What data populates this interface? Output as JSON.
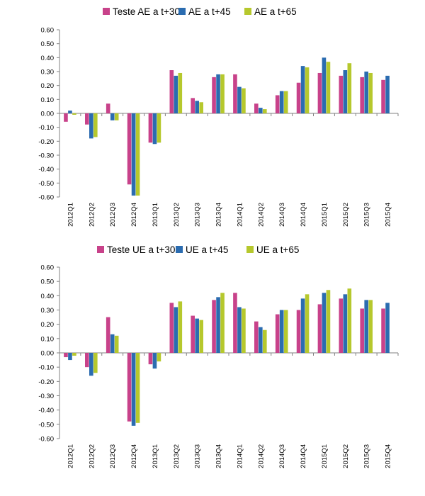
{
  "chart_data": [
    {
      "type": "bar",
      "categories": [
        "2012Q1",
        "2012Q2",
        "2012Q3",
        "2012Q4",
        "2013Q1",
        "2013Q2",
        "2013Q3",
        "2013Q4",
        "2014Q1",
        "2014Q2",
        "2014Q3",
        "2014Q4",
        "2015Q1",
        "2015Q2",
        "2015Q3",
        "2015Q4"
      ],
      "series": [
        {
          "name": "Teste AE a t+30",
          "color": "#c8428a",
          "values": [
            -0.06,
            -0.08,
            0.07,
            -0.51,
            -0.21,
            0.31,
            0.11,
            0.26,
            0.28,
            0.07,
            0.13,
            0.22,
            0.29,
            0.27,
            0.26,
            0.24
          ]
        },
        {
          "name": "AE a t+45",
          "color": "#2b6cb0",
          "values": [
            0.02,
            -0.18,
            -0.05,
            -0.59,
            -0.22,
            0.27,
            0.09,
            0.28,
            0.19,
            0.04,
            0.16,
            0.34,
            0.4,
            0.31,
            0.3,
            0.27
          ]
        },
        {
          "name": "AE a t+65",
          "color": "#b6c82d",
          "values": [
            -0.01,
            -0.17,
            -0.05,
            -0.59,
            -0.21,
            0.29,
            0.08,
            0.28,
            0.18,
            0.03,
            0.16,
            0.33,
            0.37,
            0.36,
            0.29,
            null
          ]
        }
      ],
      "ylim": [
        -0.6,
        0.6
      ],
      "yticks": [
        "0.60",
        "0.50",
        "0.40",
        "0.30",
        "0.20",
        "0.10",
        "0.00",
        "-0.10",
        "-0.20",
        "-0.30",
        "-0.40",
        "-0.50",
        "-0.60"
      ],
      "grid": false,
      "legend": "top-center"
    },
    {
      "type": "bar",
      "categories": [
        "2012Q1",
        "2012Q2",
        "2012Q3",
        "2012Q4",
        "2013Q1",
        "2013Q2",
        "2013Q3",
        "2013Q4",
        "2014Q1",
        "2014Q2",
        "2014Q3",
        "2014Q4",
        "2015Q1",
        "2015Q2",
        "2015Q3",
        "2015Q4"
      ],
      "series": [
        {
          "name": "Teste UE a t+30",
          "color": "#c8428a",
          "values": [
            -0.03,
            -0.1,
            0.25,
            -0.48,
            -0.08,
            0.35,
            0.26,
            0.37,
            0.42,
            0.22,
            0.27,
            0.3,
            0.34,
            0.38,
            0.31,
            0.31
          ]
        },
        {
          "name": "UE a t+45",
          "color": "#2b6cb0",
          "values": [
            -0.05,
            -0.16,
            0.13,
            -0.51,
            -0.11,
            0.32,
            0.24,
            0.39,
            0.32,
            0.18,
            0.3,
            0.38,
            0.42,
            0.41,
            0.37,
            0.35
          ]
        },
        {
          "name": "UE a t+65",
          "color": "#b6c82d",
          "values": [
            -0.02,
            -0.14,
            0.12,
            -0.49,
            -0.06,
            0.36,
            0.23,
            0.42,
            0.31,
            0.16,
            0.3,
            0.41,
            0.44,
            0.45,
            0.37,
            null
          ]
        }
      ],
      "ylim": [
        -0.6,
        0.6
      ],
      "yticks": [
        "0.60",
        "0.50",
        "0.40",
        "0.30",
        "0.20",
        "0.10",
        "0.00",
        "-0.10",
        "-0.20",
        "-0.30",
        "-0.40",
        "-0.50",
        "-0.60"
      ],
      "grid": false,
      "legend": "top-center"
    }
  ]
}
